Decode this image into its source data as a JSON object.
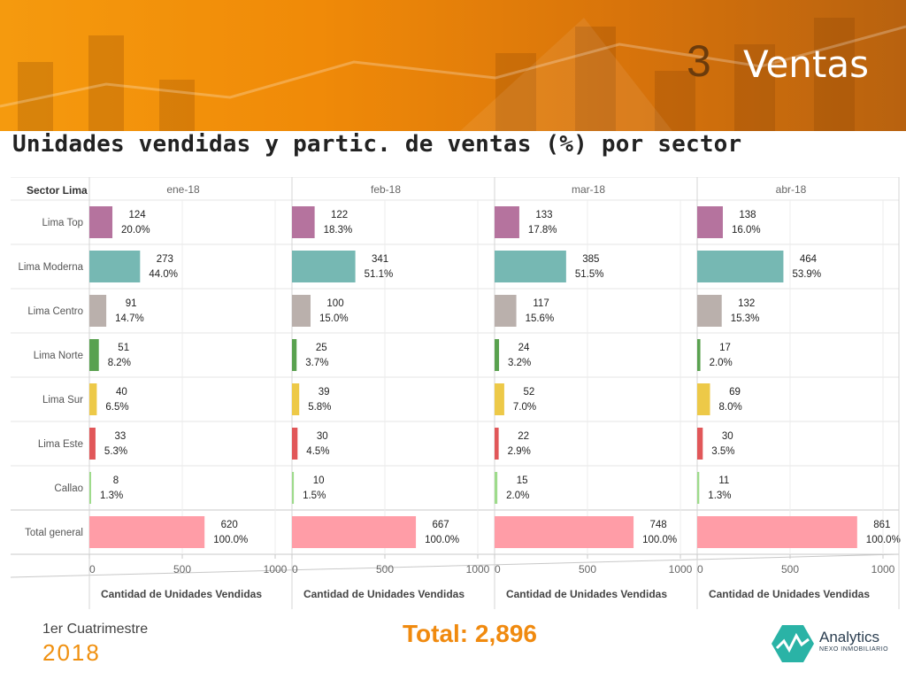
{
  "header": {
    "section_number": "3",
    "section_title": "Ventas",
    "subtitle": "Unidades vendidas y partic. de ventas (%) por sector"
  },
  "footer": {
    "period": "1er Cuatrimestre",
    "year": "2018",
    "total": "Total: 2,896",
    "logo_name": "Analytics",
    "logo_tag": "NEXO INMOBILIARIO"
  },
  "chart_data": {
    "type": "bar",
    "orientation": "horizontal",
    "row_header": "Sector Lima",
    "categories": [
      "Lima Top",
      "Lima Moderna",
      "Lima Centro",
      "Lima Norte",
      "Lima Sur",
      "Lima Este",
      "Callao",
      "Total general"
    ],
    "colors": [
      "#b5739e",
      "#76b8b3",
      "#bab0ac",
      "#59a14f",
      "#edc948",
      "#e15759",
      "#9edb8b",
      "#ff9da7"
    ],
    "xlabel": "Cantidad de Unidades Vendidas",
    "xlim": [
      0,
      1000
    ],
    "xticks": [
      "0",
      "500",
      "1000"
    ],
    "grid": true,
    "series": [
      {
        "name": "ene-18",
        "values": [
          124,
          273,
          91,
          51,
          40,
          33,
          8,
          620
        ],
        "labels": [
          "124",
          "273",
          "91",
          "51",
          "40",
          "33",
          "8",
          "620"
        ],
        "pct": [
          "20.0%",
          "44.0%",
          "14.7%",
          "8.2%",
          "6.5%",
          "5.3%",
          "1.3%",
          "100.0%"
        ]
      },
      {
        "name": "feb-18",
        "values": [
          122,
          341,
          100,
          25,
          39,
          30,
          10,
          667
        ],
        "labels": [
          "122",
          "341",
          "100",
          "25",
          "39",
          "30",
          "10",
          "667"
        ],
        "pct": [
          "18.3%",
          "51.1%",
          "15.0%",
          "3.7%",
          "5.8%",
          "4.5%",
          "1.5%",
          "100.0%"
        ]
      },
      {
        "name": "mar-18",
        "values": [
          133,
          385,
          117,
          24,
          52,
          22,
          15,
          748
        ],
        "labels": [
          "133",
          "385",
          "117",
          "24",
          "52",
          "22",
          "15",
          "748"
        ],
        "pct": [
          "17.8%",
          "51.5%",
          "15.6%",
          "3.2%",
          "7.0%",
          "2.9%",
          "2.0%",
          "100.0%"
        ]
      },
      {
        "name": "abr-18",
        "values": [
          138,
          464,
          132,
          17,
          69,
          30,
          11,
          861
        ],
        "labels": [
          "138",
          "464",
          "132",
          "17",
          "69",
          "30",
          "11",
          "861"
        ],
        "pct": [
          "16.0%",
          "53.9%",
          "15.3%",
          "2.0%",
          "8.0%",
          "3.5%",
          "1.3%",
          "100.0%"
        ]
      }
    ]
  }
}
